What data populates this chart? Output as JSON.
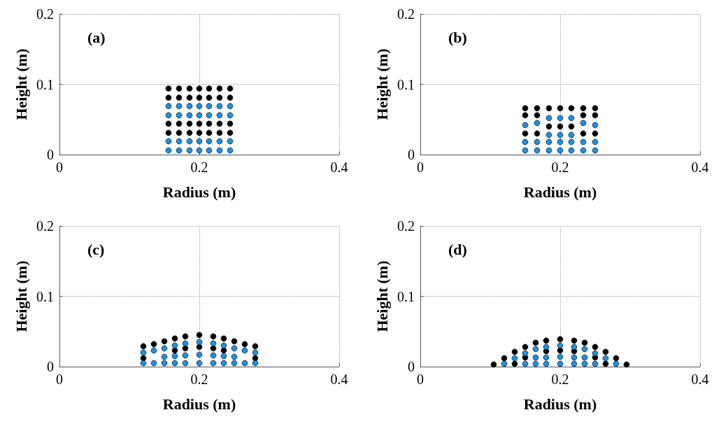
{
  "chart_data": [
    {
      "type": "scatter",
      "xlabel": "Radius (m)",
      "ylabel": "Height (m)",
      "xlim": [
        0,
        0.4
      ],
      "ylim": [
        0,
        0.2
      ],
      "xticks": [
        0,
        0.2,
        0.4
      ],
      "yticks": [
        0,
        0.1,
        0.2
      ],
      "grid": true,
      "marker": "circle",
      "annotations": [
        "(a)"
      ],
      "series": [
        {
          "color": "#000000",
          "x": [
            0.156,
            0.171,
            0.186,
            0.2,
            0.214,
            0.229,
            0.244,
            0.156,
            0.171,
            0.186,
            0.2,
            0.214,
            0.229,
            0.244,
            0.156,
            0.171,
            0.186,
            0.2,
            0.214,
            0.229,
            0.244,
            0.156,
            0.171,
            0.186,
            0.2,
            0.214,
            0.229,
            0.244
          ],
          "values": [
            0.031,
            0.031,
            0.031,
            0.031,
            0.031,
            0.031,
            0.031,
            0.044,
            0.044,
            0.044,
            0.044,
            0.044,
            0.044,
            0.044,
            0.081,
            0.081,
            0.081,
            0.081,
            0.081,
            0.081,
            0.081,
            0.094,
            0.094,
            0.094,
            0.094,
            0.094,
            0.094,
            0.094
          ]
        },
        {
          "color": "#1e8fe0",
          "x": [
            0.156,
            0.171,
            0.186,
            0.2,
            0.214,
            0.229,
            0.244,
            0.156,
            0.171,
            0.186,
            0.2,
            0.214,
            0.229,
            0.244,
            0.156,
            0.171,
            0.186,
            0.2,
            0.214,
            0.229,
            0.244,
            0.156,
            0.171,
            0.186,
            0.2,
            0.214,
            0.229,
            0.244
          ],
          "values": [
            0.006,
            0.006,
            0.006,
            0.006,
            0.006,
            0.006,
            0.006,
            0.019,
            0.019,
            0.019,
            0.019,
            0.019,
            0.019,
            0.019,
            0.056,
            0.056,
            0.056,
            0.056,
            0.056,
            0.056,
            0.056,
            0.069,
            0.069,
            0.069,
            0.069,
            0.069,
            0.069,
            0.069
          ]
        }
      ]
    },
    {
      "type": "scatter",
      "xlabel": "Radius (m)",
      "ylabel": "Height (m)",
      "xlim": [
        0,
        0.4
      ],
      "ylim": [
        0,
        0.2
      ],
      "xticks": [
        0,
        0.2,
        0.4
      ],
      "yticks": [
        0,
        0.1,
        0.2
      ],
      "grid": true,
      "marker": "circle",
      "annotations": [
        "(b)"
      ],
      "series": [
        {
          "color": "#000000",
          "x": [
            0.15,
            0.167,
            0.233,
            0.25,
            0.184,
            0.2,
            0.216,
            0.15,
            0.167,
            0.233,
            0.25,
            0.15,
            0.167,
            0.184,
            0.2,
            0.216,
            0.233,
            0.25
          ],
          "values": [
            0.03,
            0.03,
            0.03,
            0.03,
            0.04,
            0.04,
            0.04,
            0.056,
            0.056,
            0.056,
            0.056,
            0.066,
            0.066,
            0.066,
            0.066,
            0.066,
            0.066,
            0.066
          ]
        },
        {
          "color": "#1e8fe0",
          "x": [
            0.15,
            0.167,
            0.184,
            0.2,
            0.216,
            0.233,
            0.25,
            0.15,
            0.167,
            0.184,
            0.2,
            0.216,
            0.233,
            0.25,
            0.184,
            0.2,
            0.216,
            0.15,
            0.25,
            0.167,
            0.233,
            0.184,
            0.2,
            0.216
          ],
          "values": [
            0.006,
            0.006,
            0.006,
            0.006,
            0.006,
            0.006,
            0.006,
            0.018,
            0.018,
            0.018,
            0.018,
            0.018,
            0.018,
            0.018,
            0.028,
            0.028,
            0.028,
            0.042,
            0.042,
            0.045,
            0.045,
            0.052,
            0.052,
            0.052
          ]
        }
      ]
    },
    {
      "type": "scatter",
      "xlabel": "Radius (m)",
      "ylabel": "Height (m)",
      "xlim": [
        0,
        0.4
      ],
      "ylim": [
        0,
        0.2
      ],
      "xticks": [
        0,
        0.2,
        0.4
      ],
      "yticks": [
        0,
        0.1,
        0.2
      ],
      "grid": true,
      "marker": "circle",
      "annotations": [
        "(c)"
      ],
      "series": [
        {
          "color": "#000000",
          "x": [
            0.12,
            0.135,
            0.15,
            0.165,
            0.18,
            0.2,
            0.22,
            0.235,
            0.25,
            0.265,
            0.28,
            0.165,
            0.18,
            0.2,
            0.22,
            0.235,
            0.12,
            0.28
          ],
          "values": [
            0.029,
            0.032,
            0.036,
            0.04,
            0.043,
            0.045,
            0.043,
            0.04,
            0.036,
            0.032,
            0.029,
            0.023,
            0.026,
            0.028,
            0.026,
            0.023,
            0.012,
            0.012
          ]
        },
        {
          "color": "#1e8fe0",
          "x": [
            0.12,
            0.135,
            0.15,
            0.165,
            0.18,
            0.2,
            0.22,
            0.235,
            0.25,
            0.265,
            0.28,
            0.15,
            0.165,
            0.18,
            0.2,
            0.22,
            0.235,
            0.25,
            0.12,
            0.135,
            0.15,
            0.165,
            0.18,
            0.2,
            0.22,
            0.235,
            0.25,
            0.265,
            0.28
          ],
          "values": [
            0.005,
            0.005,
            0.005,
            0.005,
            0.005,
            0.005,
            0.005,
            0.005,
            0.005,
            0.005,
            0.005,
            0.014,
            0.015,
            0.016,
            0.017,
            0.016,
            0.015,
            0.014,
            0.02,
            0.023,
            0.026,
            0.03,
            0.033,
            0.035,
            0.033,
            0.03,
            0.026,
            0.023,
            0.02
          ]
        }
      ]
    },
    {
      "type": "scatter",
      "xlabel": "Radius (m)",
      "ylabel": "Height (m)",
      "xlim": [
        0,
        0.4
      ],
      "ylim": [
        0,
        0.2
      ],
      "xticks": [
        0,
        0.2,
        0.4
      ],
      "yticks": [
        0,
        0.1,
        0.2
      ],
      "grid": true,
      "marker": "circle",
      "annotations": [
        "(d)"
      ],
      "series": [
        {
          "color": "#000000",
          "x": [
            0.105,
            0.12,
            0.135,
            0.15,
            0.165,
            0.18,
            0.2,
            0.22,
            0.235,
            0.25,
            0.265,
            0.28,
            0.295,
            0.15,
            0.18,
            0.2,
            0.22,
            0.25,
            0.135,
            0.265
          ],
          "values": [
            0.003,
            0.012,
            0.021,
            0.028,
            0.034,
            0.037,
            0.039,
            0.037,
            0.034,
            0.028,
            0.021,
            0.012,
            0.003,
            0.013,
            0.022,
            0.023,
            0.022,
            0.013,
            0.004,
            0.004
          ]
        },
        {
          "color": "#1e8fe0",
          "x": [
            0.12,
            0.135,
            0.15,
            0.165,
            0.18,
            0.2,
            0.22,
            0.235,
            0.25,
            0.265,
            0.28,
            0.15,
            0.165,
            0.18,
            0.2,
            0.22,
            0.235,
            0.25,
            0.165,
            0.18,
            0.2,
            0.22,
            0.235
          ],
          "values": [
            0.004,
            0.012,
            0.019,
            0.025,
            0.028,
            0.03,
            0.028,
            0.025,
            0.019,
            0.012,
            0.004,
            0.004,
            0.004,
            0.004,
            0.004,
            0.004,
            0.004,
            0.004,
            0.013,
            0.013,
            0.014,
            0.013,
            0.013
          ]
        }
      ]
    }
  ]
}
